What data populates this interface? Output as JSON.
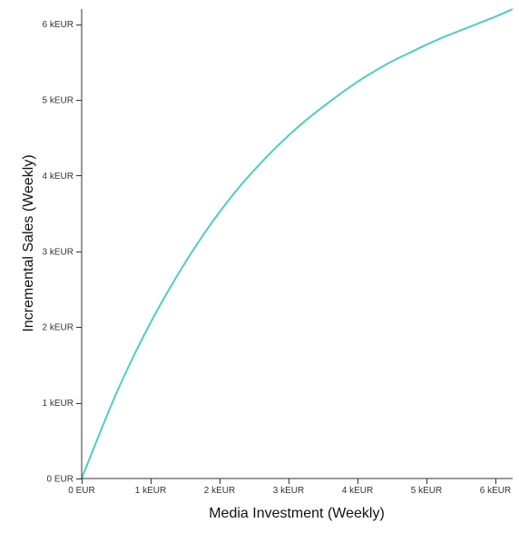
{
  "chart_data": {
    "type": "line",
    "title": "",
    "xlabel": "Media Investment (Weekly)",
    "ylabel": "Incremental Sales (Weekly)",
    "xlim": [
      0,
      6250
    ],
    "ylim": [
      0,
      6200
    ],
    "x_ticks": [
      {
        "value": 0,
        "label": "0 EUR"
      },
      {
        "value": 1000,
        "label": "1 kEUR"
      },
      {
        "value": 2000,
        "label": "2 kEUR"
      },
      {
        "value": 3000,
        "label": "3 kEUR"
      },
      {
        "value": 4000,
        "label": "4 kEUR"
      },
      {
        "value": 5000,
        "label": "5 kEUR"
      },
      {
        "value": 6000,
        "label": "6 kEUR"
      }
    ],
    "y_ticks": [
      {
        "value": 0,
        "label": "0 EUR"
      },
      {
        "value": 1000,
        "label": "1 kEUR"
      },
      {
        "value": 2000,
        "label": "2 kEUR"
      },
      {
        "value": 3000,
        "label": "3 kEUR"
      },
      {
        "value": 4000,
        "label": "4 kEUR"
      },
      {
        "value": 5000,
        "label": "5 kEUR"
      },
      {
        "value": 6000,
        "label": "6 kEUR"
      }
    ],
    "grid": false,
    "legend": "none",
    "series": [
      {
        "color": "#4ecdc4",
        "x": [
          0,
          250,
          500,
          750,
          1000,
          1250,
          1500,
          1750,
          2000,
          2250,
          2500,
          2750,
          3000,
          3250,
          3500,
          3750,
          4000,
          4250,
          4500,
          4750,
          5000,
          5250,
          5500,
          5750,
          6000,
          6250
        ],
        "y": [
          0,
          570,
          1120,
          1610,
          2060,
          2470,
          2850,
          3200,
          3520,
          3810,
          4070,
          4310,
          4530,
          4730,
          4910,
          5080,
          5240,
          5380,
          5510,
          5620,
          5730,
          5830,
          5920,
          6010,
          6100,
          6200
        ]
      }
    ]
  }
}
